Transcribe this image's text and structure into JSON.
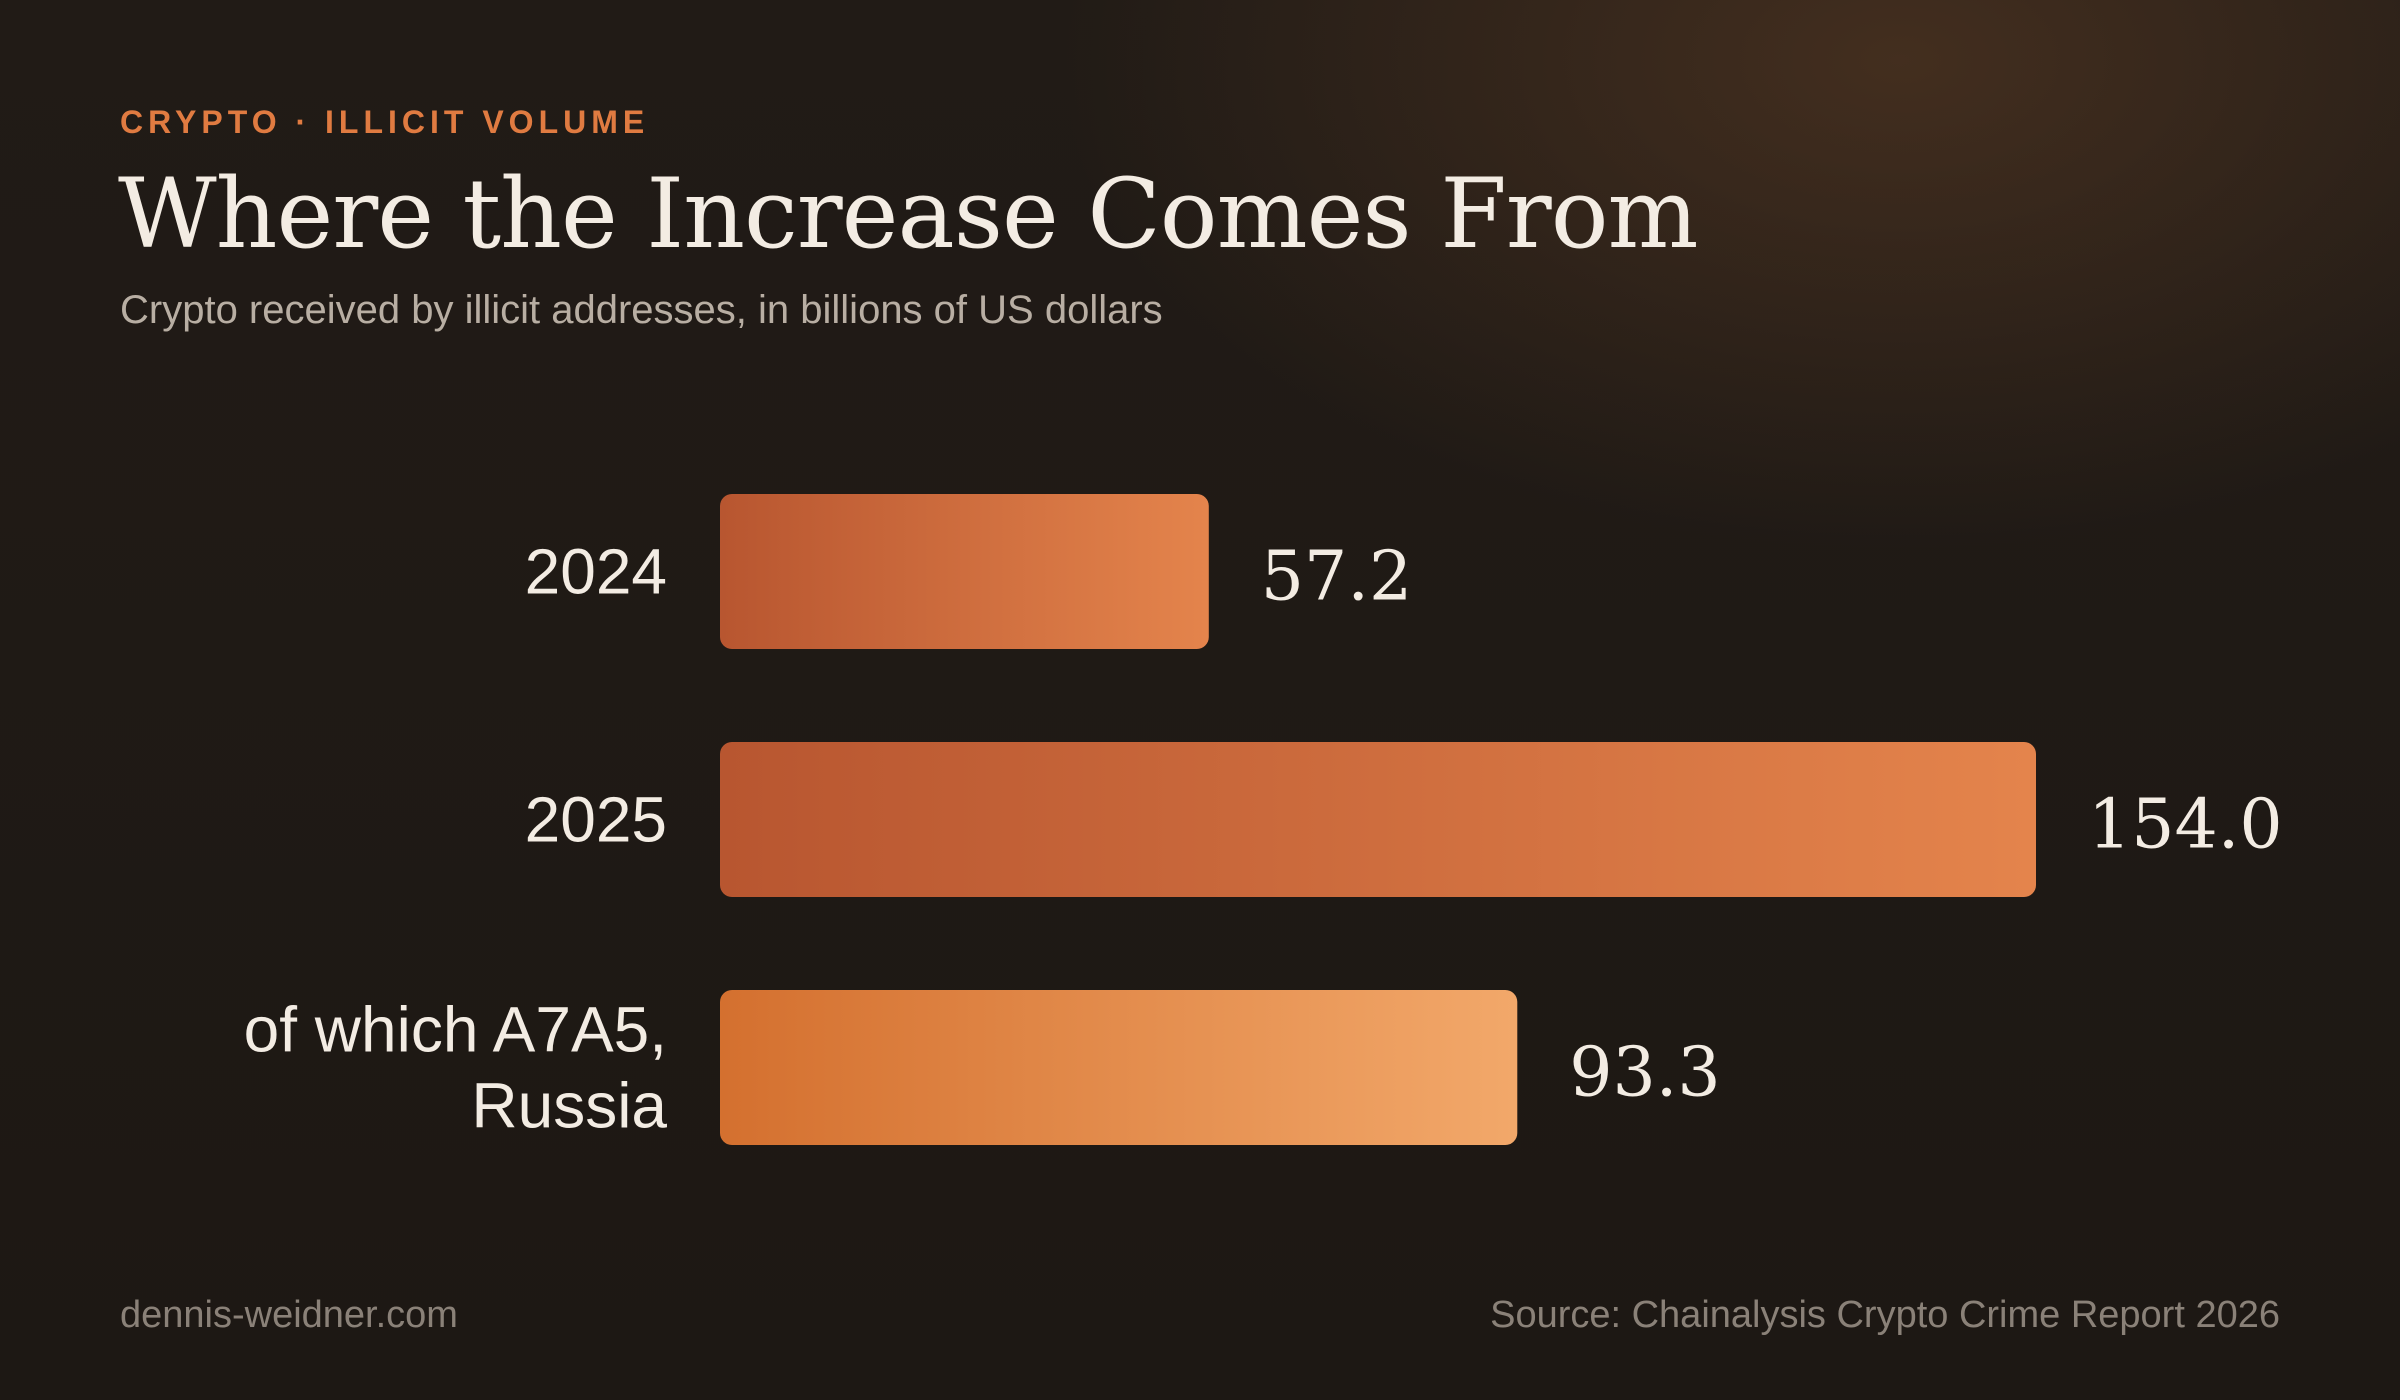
{
  "header": {
    "kicker": "CRYPTO · ILLICIT VOLUME",
    "title": "Where the Increase Comes From",
    "subtitle": "Crypto received by illicit addresses, in billions of US dollars"
  },
  "footer": {
    "site": "dennis-weidner.com",
    "source": "Source: Chainalysis Crypto Crime Report 2026"
  },
  "colors": {
    "accent": "#e07b41",
    "bar_dark_start": "#b85630",
    "bar_dark_end": "#e4844c",
    "bar_light_start": "#d4702f",
    "bar_light_end": "#f2a86a",
    "text": "#f3ece3",
    "muted": "#8a8178"
  },
  "chart_data": {
    "type": "bar",
    "orientation": "horizontal",
    "categories": [
      "2024",
      "2025",
      "of which A7A5, Russia"
    ],
    "category_lines": [
      [
        "2024"
      ],
      [
        "2025"
      ],
      [
        "of which A7A5,",
        "Russia"
      ]
    ],
    "values": [
      57.2,
      154.0,
      93.3
    ],
    "value_labels": [
      "57.2",
      "154.0",
      "93.3"
    ],
    "title": "Where the Increase Comes From",
    "subtitle": "Crypto received by illicit addresses, in billions of US dollars",
    "xlabel": "",
    "ylabel": "",
    "xlim": [
      0,
      154.0
    ],
    "grid": false,
    "legend": "none"
  }
}
